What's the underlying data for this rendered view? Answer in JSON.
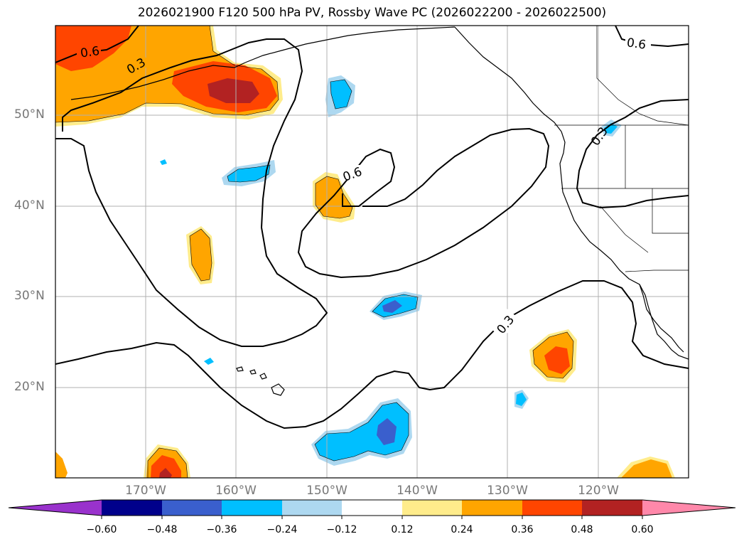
{
  "title": "2026021900 F120 500 hPa PV, Rossby Wave PC (2026022200 - 2026022500)",
  "lat_labels": [
    "50°N",
    "40°N",
    "30°N",
    "20°N"
  ],
  "lon_labels": [
    "170°W",
    "160°W",
    "150°W",
    "140°W",
    "130°W",
    "120°W"
  ],
  "contour_labels": [
    "0.6",
    "0.3",
    "0.6",
    "0.3",
    "0.6",
    "0.3"
  ],
  "colorbar": {
    "ticks": [
      "−0.60",
      "−0.48",
      "−0.36",
      "−0.24",
      "−0.12",
      "0.12",
      "0.24",
      "0.36",
      "0.48",
      "0.60"
    ],
    "colors": [
      "#9932cc",
      "#00008b",
      "#3a5fcd",
      "#00bfff",
      "#add8f0",
      "#ffffff",
      "#ffec8b",
      "#ffa500",
      "#ff4500",
      "#b22222",
      "#ff88aa"
    ]
  },
  "colors": {
    "orange": "#ffa500",
    "red_orange": "#ff4500",
    "dark_red": "#b22222",
    "light_yellow": "#ffec8b",
    "deep_sky_blue": "#00bfff",
    "light_blue": "#add8f0",
    "royal_blue": "#3a5fcd"
  }
}
